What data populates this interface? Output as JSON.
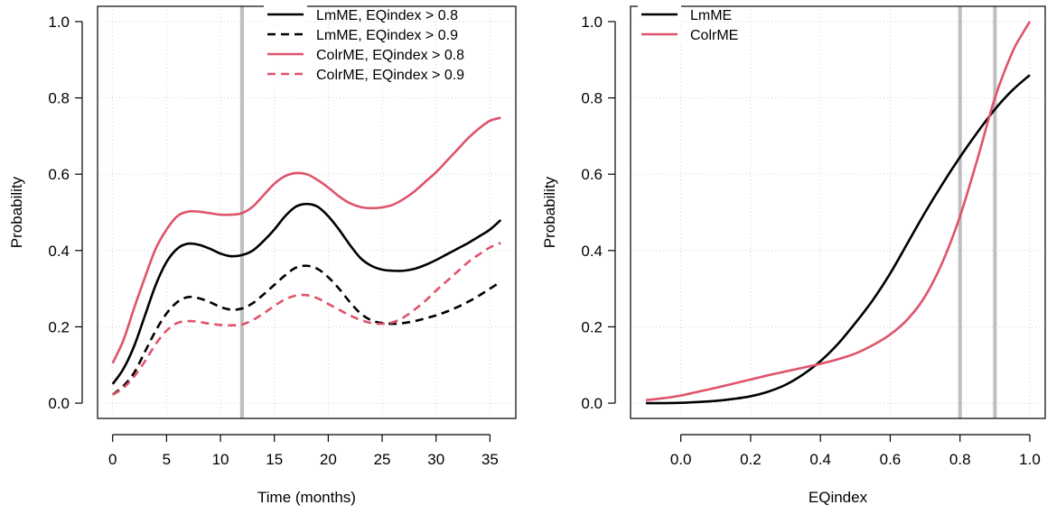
{
  "chart_data": [
    {
      "type": "line",
      "xlabel": "Time (months)",
      "ylabel": "Probability",
      "xlim": [
        -1.4,
        37.4
      ],
      "ylim": [
        -0.04,
        1.04
      ],
      "xticks": [
        0,
        5,
        10,
        15,
        20,
        25,
        30,
        35
      ],
      "yticks": [
        0.0,
        0.2,
        0.4,
        0.6,
        0.8,
        1.0
      ],
      "xtick_labels": [
        "0",
        "5",
        "10",
        "15",
        "20",
        "25",
        "30",
        "35"
      ],
      "ytick_labels": [
        "0.0",
        "0.2",
        "0.4",
        "0.6",
        "0.8",
        "1.0"
      ],
      "grid": true,
      "legend_position": "top-right",
      "vlines": [
        12
      ],
      "series": [
        {
          "name": "LmME,  EQindex > 0.8",
          "color": "#000000",
          "dash": "solid",
          "x": [
            0,
            1,
            2,
            3,
            4,
            5,
            6,
            7,
            8,
            9,
            10,
            11,
            12,
            13,
            14,
            15,
            16,
            17,
            18,
            19,
            20,
            21,
            22,
            23,
            24,
            25,
            26,
            27,
            28,
            29,
            30,
            31,
            32,
            33,
            34,
            35,
            36
          ],
          "y": [
            0.05,
            0.09,
            0.15,
            0.23,
            0.31,
            0.37,
            0.405,
            0.418,
            0.415,
            0.405,
            0.392,
            0.385,
            0.388,
            0.4,
            0.425,
            0.455,
            0.49,
            0.515,
            0.522,
            0.515,
            0.49,
            0.455,
            0.415,
            0.38,
            0.36,
            0.35,
            0.347,
            0.347,
            0.352,
            0.362,
            0.375,
            0.39,
            0.405,
            0.42,
            0.437,
            0.455,
            0.48
          ]
        },
        {
          "name": "LmME,  EQindex > 0.9",
          "color": "#000000",
          "dash": "dashed",
          "x": [
            0,
            1,
            2,
            3,
            4,
            5,
            6,
            7,
            8,
            9,
            10,
            11,
            12,
            13,
            14,
            15,
            16,
            17,
            18,
            19,
            20,
            21,
            22,
            23,
            24,
            25,
            26,
            27,
            28,
            29,
            30,
            31,
            32,
            33,
            34,
            35,
            36
          ],
          "y": [
            0.022,
            0.045,
            0.08,
            0.135,
            0.19,
            0.235,
            0.265,
            0.278,
            0.275,
            0.265,
            0.252,
            0.245,
            0.248,
            0.262,
            0.285,
            0.31,
            0.335,
            0.355,
            0.36,
            0.352,
            0.33,
            0.3,
            0.265,
            0.235,
            0.217,
            0.21,
            0.208,
            0.21,
            0.215,
            0.222,
            0.23,
            0.24,
            0.252,
            0.266,
            0.282,
            0.3,
            0.318
          ]
        },
        {
          "name": "ColrME, EQindex > 0.8",
          "color": "#DF536B",
          "dash": "solid",
          "x": [
            0,
            1,
            2,
            3,
            4,
            5,
            6,
            7,
            8,
            9,
            10,
            11,
            12,
            13,
            14,
            15,
            16,
            17,
            18,
            19,
            20,
            21,
            22,
            23,
            24,
            25,
            26,
            27,
            28,
            29,
            30,
            31,
            32,
            33,
            34,
            35,
            36
          ],
          "y": [
            0.105,
            0.165,
            0.25,
            0.33,
            0.405,
            0.455,
            0.49,
            0.502,
            0.502,
            0.498,
            0.494,
            0.494,
            0.498,
            0.515,
            0.545,
            0.575,
            0.595,
            0.603,
            0.6,
            0.585,
            0.565,
            0.542,
            0.524,
            0.514,
            0.511,
            0.513,
            0.52,
            0.535,
            0.555,
            0.58,
            0.605,
            0.635,
            0.665,
            0.695,
            0.72,
            0.74,
            0.748
          ]
        },
        {
          "name": "ColrME, EQindex > 0.9",
          "color": "#DF536B",
          "dash": "dashed",
          "x": [
            0,
            1,
            2,
            3,
            4,
            5,
            6,
            7,
            8,
            9,
            10,
            11,
            12,
            13,
            14,
            15,
            16,
            17,
            18,
            19,
            20,
            21,
            22,
            23,
            24,
            25,
            26,
            27,
            28,
            29,
            30,
            31,
            32,
            33,
            34,
            35,
            36
          ],
          "y": [
            0.022,
            0.04,
            0.07,
            0.11,
            0.155,
            0.19,
            0.21,
            0.215,
            0.213,
            0.208,
            0.205,
            0.204,
            0.206,
            0.218,
            0.235,
            0.255,
            0.272,
            0.282,
            0.283,
            0.275,
            0.26,
            0.245,
            0.23,
            0.218,
            0.21,
            0.208,
            0.212,
            0.225,
            0.245,
            0.268,
            0.295,
            0.32,
            0.345,
            0.37,
            0.39,
            0.408,
            0.42
          ]
        }
      ]
    },
    {
      "type": "line",
      "xlabel": "EQindex",
      "ylabel": "Probability",
      "xlim": [
        -0.144,
        1.044
      ],
      "ylim": [
        -0.04,
        1.04
      ],
      "xticks": [
        0.0,
        0.2,
        0.4,
        0.6,
        0.8,
        1.0
      ],
      "yticks": [
        0.0,
        0.2,
        0.4,
        0.6,
        0.8,
        1.0
      ],
      "xtick_labels": [
        "0.0",
        "0.2",
        "0.4",
        "0.6",
        "0.8",
        "1.0"
      ],
      "ytick_labels": [
        "0.0",
        "0.2",
        "0.4",
        "0.6",
        "0.8",
        "1.0"
      ],
      "grid": true,
      "legend_position": "top-left",
      "vlines": [
        0.8,
        0.9
      ],
      "series": [
        {
          "name": "LmME",
          "color": "#000000",
          "dash": "solid",
          "x": [
            -0.1,
            -0.05,
            0.0,
            0.05,
            0.1,
            0.15,
            0.2,
            0.25,
            0.3,
            0.35,
            0.4,
            0.45,
            0.5,
            0.55,
            0.6,
            0.65,
            0.7,
            0.75,
            0.8,
            0.85,
            0.9,
            0.95,
            1.0
          ],
          "y": [
            0.0,
            0.0,
            0.001,
            0.003,
            0.006,
            0.011,
            0.018,
            0.03,
            0.048,
            0.075,
            0.11,
            0.155,
            0.21,
            0.27,
            0.34,
            0.42,
            0.5,
            0.575,
            0.645,
            0.71,
            0.77,
            0.82,
            0.86
          ]
        },
        {
          "name": "ColrME",
          "color": "#DF536B",
          "dash": "solid",
          "x": [
            -0.1,
            -0.05,
            0.0,
            0.05,
            0.1,
            0.15,
            0.2,
            0.25,
            0.3,
            0.35,
            0.4,
            0.45,
            0.5,
            0.55,
            0.6,
            0.65,
            0.7,
            0.75,
            0.8,
            0.85,
            0.9,
            0.95,
            0.98,
            1.0
          ],
          "y": [
            0.008,
            0.013,
            0.02,
            0.03,
            0.04,
            0.051,
            0.062,
            0.073,
            0.083,
            0.093,
            0.103,
            0.115,
            0.13,
            0.152,
            0.18,
            0.22,
            0.28,
            0.37,
            0.49,
            0.64,
            0.8,
            0.92,
            0.97,
            1.0
          ]
        }
      ]
    }
  ]
}
